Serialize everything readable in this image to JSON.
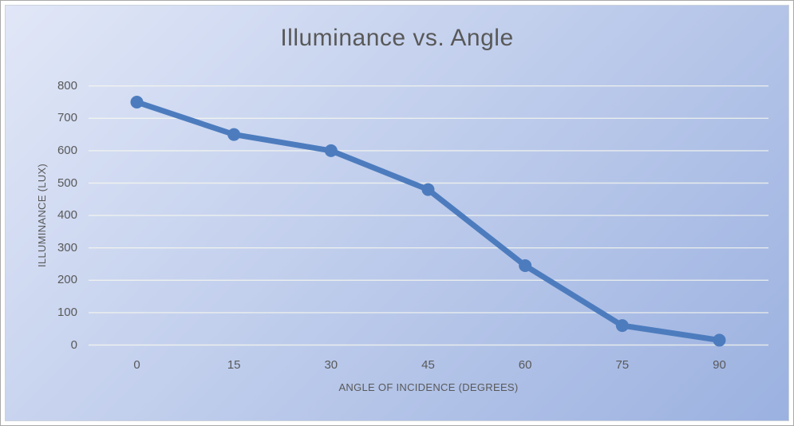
{
  "chart_data": {
    "type": "line",
    "title": "Illuminance vs. Angle",
    "xlabel": "ANGLE OF INCIDENCE (DEGREES)",
    "ylabel": "ILLUMINANCE (LUX)",
    "categories": [
      0,
      15,
      30,
      45,
      60,
      75,
      90
    ],
    "values": [
      750,
      650,
      600,
      480,
      245,
      60,
      15
    ],
    "ylim": [
      0,
      800
    ],
    "ytick_step": 100,
    "yticks": [
      0,
      100,
      200,
      300,
      400,
      500,
      600,
      700,
      800
    ],
    "grid": true,
    "legend": false,
    "marker": "circle",
    "colors": {
      "accent": "#4d7cbe",
      "text": "#595959",
      "grid": "#fafaee",
      "bg_gradient_start": "#e1e7f7",
      "bg_gradient_end": "#9bb1e0",
      "frame_border": "#a8a8a8",
      "inner_border": "#ccd2db"
    }
  }
}
